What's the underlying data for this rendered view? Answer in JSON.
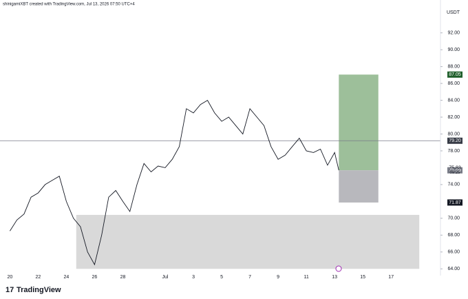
{
  "chart_data": {
    "type": "line",
    "header": "shinigamiXBT created with TradingView.com, Jul 13, 2026 07:50 UTC+4",
    "currency": "USDT",
    "brand": "TradingView",
    "color": "#131722",
    "x": [
      0,
      0.5,
      1,
      1.5,
      2,
      2.5,
      3,
      3.5,
      4,
      4.5,
      5,
      5.5,
      6,
      6.5,
      7,
      7.5,
      8,
      8.5,
      9,
      9.5,
      10,
      10.5,
      11,
      11.5,
      12,
      12.5,
      13,
      13.5,
      14,
      14.5,
      15,
      15.5,
      16,
      16.5,
      17,
      17.5,
      18,
      18.5,
      19,
      19.5,
      20,
      20.5,
      21,
      21.5,
      22,
      22.5,
      23,
      23.3
    ],
    "values": [
      68.5,
      69.8,
      70.5,
      72.5,
      73,
      74,
      74.5,
      75,
      72,
      70,
      69,
      66,
      64.5,
      68,
      72.5,
      73.3,
      72,
      70.8,
      74,
      76.5,
      75.5,
      76.2,
      76,
      77,
      78.5,
      83,
      82.5,
      83.5,
      84,
      82.5,
      81.5,
      82,
      81,
      80,
      83,
      82,
      81,
      78.5,
      77,
      77.5,
      78.5,
      79.5,
      78,
      77.8,
      78.2,
      76.3,
      77.8,
      75.7
    ],
    "xlim": [
      -0.7,
      30.5
    ],
    "ylim": [
      63.2,
      95.9
    ],
    "xticks": [
      {
        "value": 0,
        "label": "20"
      },
      {
        "value": 2,
        "label": "22"
      },
      {
        "value": 4,
        "label": "24"
      },
      {
        "value": 6,
        "label": "26"
      },
      {
        "value": 8,
        "label": "28"
      },
      {
        "value": 11,
        "label": "Jul"
      },
      {
        "value": 13,
        "label": "3"
      },
      {
        "value": 15,
        "label": "5"
      },
      {
        "value": 17,
        "label": "7"
      },
      {
        "value": 19,
        "label": "9"
      },
      {
        "value": 21,
        "label": "11"
      },
      {
        "value": 23,
        "label": "13"
      },
      {
        "value": 25,
        "label": "15"
      },
      {
        "value": 27,
        "label": "17"
      }
    ],
    "yticks": [
      {
        "value": 64,
        "label": "64.00"
      },
      {
        "value": 66,
        "label": "66.00"
      },
      {
        "value": 68,
        "label": "68.00"
      },
      {
        "value": 70,
        "label": "70.00"
      },
      {
        "value": 74,
        "label": "74.00"
      },
      {
        "value": 78,
        "label": "78.00"
      },
      {
        "value": 80,
        "label": "80.00"
      },
      {
        "value": 82,
        "label": "82.00"
      },
      {
        "value": 84,
        "label": "84.00"
      },
      {
        "value": 86,
        "label": "86.00"
      },
      {
        "value": 88,
        "label": "88.00"
      },
      {
        "value": 90,
        "label": "90.00"
      },
      {
        "value": 92,
        "label": "92.00"
      }
    ],
    "hline": {
      "value": 79.2,
      "color": "#787b86"
    },
    "boxes": [
      {
        "x": [
          4.7,
          29
        ],
        "y": [
          64,
          70.4
        ],
        "color": "#d9d9d9"
      },
      {
        "x": [
          23.3,
          26.1
        ],
        "y": [
          75.69,
          87.05
        ],
        "color": "#9dbf9a"
      },
      {
        "x": [
          23.3,
          26.1
        ],
        "y": [
          71.87,
          75.69
        ],
        "color": "#b8b8bd"
      }
    ],
    "price_labels": [
      {
        "value": 87.05,
        "color": "#1e5e2a"
      },
      {
        "value": 79.2,
        "label": "79.20",
        "color": "#363a45"
      },
      {
        "value": 75.69,
        "color": "#787b86"
      },
      {
        "value": 71.87,
        "color": "#131722"
      }
    ],
    "last_price": 75.83,
    "countdown": "09:25"
  }
}
